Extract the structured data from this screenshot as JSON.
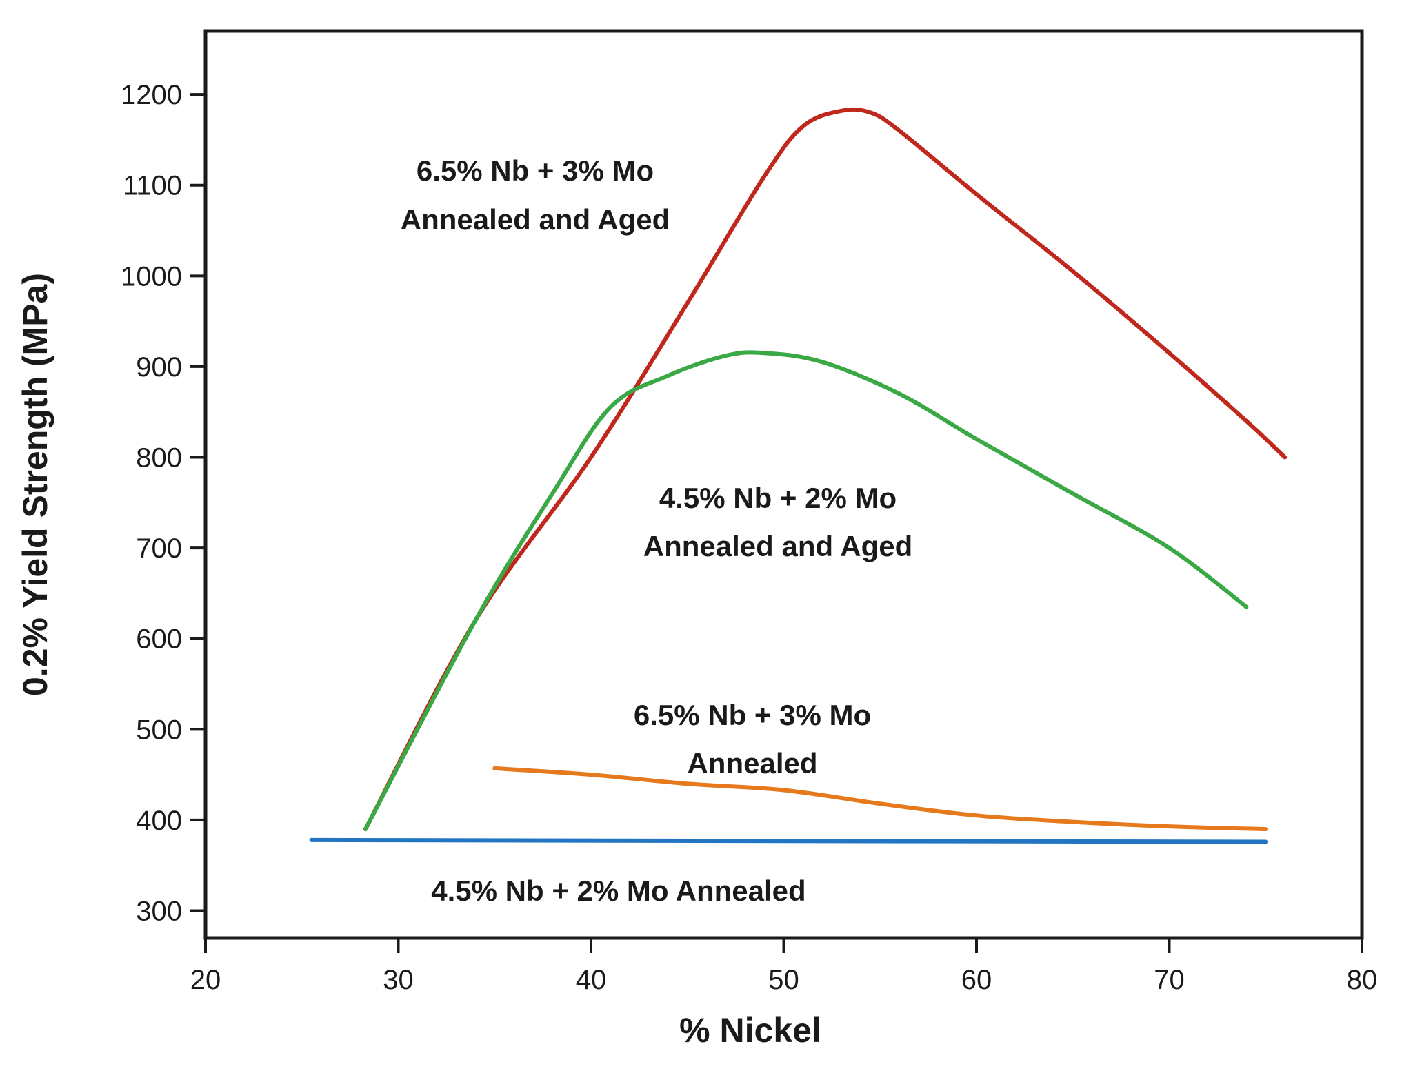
{
  "chart_data": {
    "type": "line",
    "title": "",
    "xlabel": "% Nickel",
    "ylabel": "0.2% Yield Strength (MPa)",
    "xlim": [
      20,
      80
    ],
    "ylim": [
      270,
      1270
    ],
    "xticks": [
      20,
      30,
      40,
      50,
      60,
      70,
      80
    ],
    "yticks": [
      300,
      400,
      500,
      600,
      700,
      800,
      900,
      1000,
      1100,
      1200
    ],
    "grid": false,
    "legend": "none",
    "series": [
      {
        "color": "#c0271d",
        "points": [
          [
            28.3,
            390
          ],
          [
            34,
            620
          ],
          [
            40,
            800
          ],
          [
            45,
            970
          ],
          [
            49,
            1110
          ],
          [
            51,
            1165
          ],
          [
            53,
            1182
          ],
          [
            54.5,
            1180
          ],
          [
            56,
            1160
          ],
          [
            60,
            1090
          ],
          [
            65,
            1005
          ],
          [
            70,
            915
          ],
          [
            74,
            840
          ],
          [
            76,
            800
          ]
        ]
      },
      {
        "color": "#3aa845",
        "points": [
          [
            28.3,
            390
          ],
          [
            34,
            620
          ],
          [
            38,
            760
          ],
          [
            41,
            855
          ],
          [
            44,
            890
          ],
          [
            47,
            912
          ],
          [
            49,
            915
          ],
          [
            52,
            905
          ],
          [
            56,
            870
          ],
          [
            60,
            820
          ],
          [
            65,
            760
          ],
          [
            70,
            700
          ],
          [
            74,
            635
          ]
        ]
      },
      {
        "color": "#e7791d",
        "points": [
          [
            35,
            457
          ],
          [
            40,
            450
          ],
          [
            45,
            440
          ],
          [
            50,
            433
          ],
          [
            55,
            418
          ],
          [
            60,
            405
          ],
          [
            65,
            398
          ],
          [
            70,
            393
          ],
          [
            75,
            390
          ]
        ]
      },
      {
        "color": "#2175c2",
        "points": [
          [
            25.5,
            378
          ],
          [
            75,
            376
          ]
        ]
      }
    ],
    "annotations": [
      {
        "lines": [
          "6.5% Nb + 3% Mo",
          "Annealed and Aged"
        ]
      },
      {
        "lines": [
          "4.5% Nb + 2% Mo",
          "Annealed and Aged"
        ]
      },
      {
        "lines": [
          "6.5% Nb + 3% Mo",
          "Annealed"
        ]
      },
      {
        "lines": [
          "4.5% Nb + 2% Mo Annealed"
        ]
      }
    ]
  }
}
